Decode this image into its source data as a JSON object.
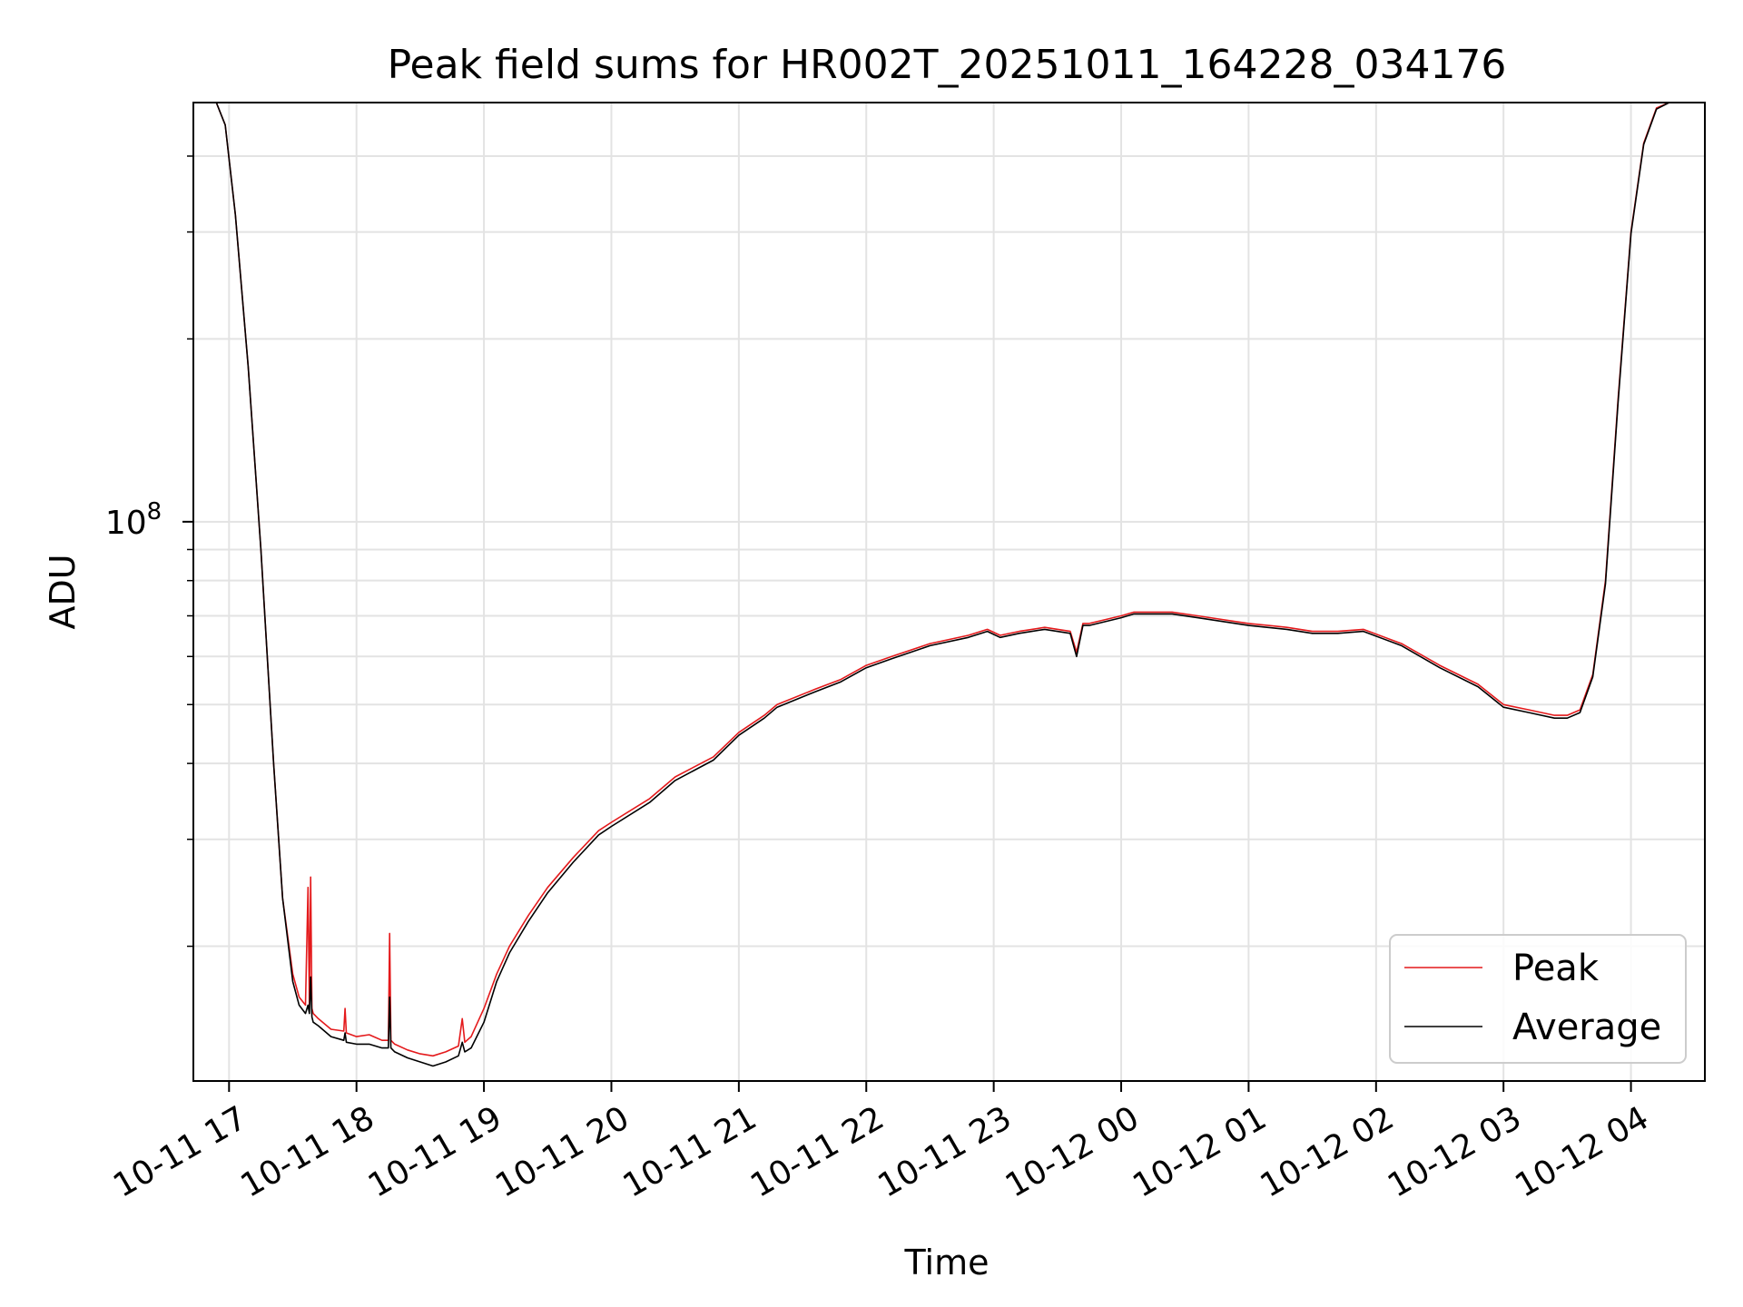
{
  "chart_data": {
    "type": "line",
    "title": "Peak field sums for HR002T_20251011_164228_034176",
    "xlabel": "Time",
    "ylabel": "ADU",
    "yscale": "log",
    "ylim": [
      12000000,
      490000000
    ],
    "xlim": [
      16.72,
      28.58
    ],
    "grid": true,
    "legend_position": "lower-right",
    "y_major_tick": {
      "value": 100000000,
      "base": "10",
      "exp": "8"
    },
    "y_minor_ticks": [
      20000000,
      30000000,
      40000000,
      50000000,
      60000000,
      70000000,
      80000000,
      90000000,
      200000000,
      300000000,
      400000000
    ],
    "x_ticks": [
      {
        "value": 17,
        "label": "10-11 17"
      },
      {
        "value": 18,
        "label": "10-11 18"
      },
      {
        "value": 19,
        "label": "10-11 19"
      },
      {
        "value": 20,
        "label": "10-11 20"
      },
      {
        "value": 21,
        "label": "10-11 21"
      },
      {
        "value": 22,
        "label": "10-11 22"
      },
      {
        "value": 23,
        "label": "10-11 23"
      },
      {
        "value": 24,
        "label": "10-12 00"
      },
      {
        "value": 25,
        "label": "10-12 01"
      },
      {
        "value": 26,
        "label": "10-12 02"
      },
      {
        "value": 27,
        "label": "10-12 03"
      },
      {
        "value": 28,
        "label": "10-12 04"
      }
    ],
    "series": [
      {
        "name": "Peak",
        "color": "#e41a1c",
        "x": [
          16.72,
          16.9,
          16.97,
          17.05,
          17.15,
          17.25,
          17.35,
          17.42,
          17.5,
          17.55,
          17.6,
          17.62,
          17.63,
          17.64,
          17.65,
          17.66,
          17.7,
          17.8,
          17.9,
          17.91,
          17.92,
          18.0,
          18.1,
          18.2,
          18.25,
          18.26,
          18.27,
          18.3,
          18.4,
          18.5,
          18.6,
          18.7,
          18.8,
          18.83,
          18.85,
          18.9,
          19.0,
          19.1,
          19.2,
          19.35,
          19.5,
          19.7,
          19.9,
          20.0,
          20.3,
          20.5,
          20.8,
          21.0,
          21.2,
          21.3,
          21.6,
          21.8,
          22.0,
          22.2,
          22.5,
          22.8,
          22.95,
          23.05,
          23.2,
          23.4,
          23.6,
          23.65,
          23.7,
          23.75,
          24.0,
          24.1,
          24.4,
          24.6,
          25.0,
          25.3,
          25.5,
          25.7,
          25.9,
          26.2,
          26.5,
          26.8,
          27.0,
          27.2,
          27.4,
          27.5,
          27.6,
          27.7,
          27.8,
          27.9,
          28.0,
          28.1,
          28.2,
          28.3,
          28.4,
          28.5,
          28.58
        ],
        "values": [
          490000000,
          490000000,
          450000000,
          320000000,
          180000000,
          90000000,
          40000000,
          24000000,
          18000000,
          16500000,
          16000000,
          25000000,
          16000000,
          26000000,
          15800000,
          15500000,
          15200000,
          14600000,
          14500000,
          15800000,
          14400000,
          14200000,
          14300000,
          14000000,
          14000000,
          21000000,
          14000000,
          13800000,
          13500000,
          13300000,
          13200000,
          13400000,
          13700000,
          15200000,
          13900000,
          14200000,
          15800000,
          18000000,
          20000000,
          22500000,
          25000000,
          28000000,
          31000000,
          32000000,
          35000000,
          38000000,
          41000000,
          45000000,
          48000000,
          50000000,
          53000000,
          55000000,
          58000000,
          60000000,
          63000000,
          65000000,
          66500000,
          65000000,
          66000000,
          67000000,
          66000000,
          61000000,
          68000000,
          68000000,
          70000000,
          71000000,
          71000000,
          70000000,
          68000000,
          67000000,
          66000000,
          66000000,
          66500000,
          63000000,
          58000000,
          54000000,
          50000000,
          49000000,
          48000000,
          48000000,
          49000000,
          56000000,
          80000000,
          160000000,
          300000000,
          420000000,
          480000000,
          490000000,
          490000000,
          490000000,
          490000000
        ]
      },
      {
        "name": "Average",
        "color": "#000000",
        "x": [
          16.72,
          16.9,
          16.97,
          17.05,
          17.15,
          17.25,
          17.35,
          17.42,
          17.5,
          17.55,
          17.6,
          17.62,
          17.63,
          17.64,
          17.65,
          17.66,
          17.7,
          17.8,
          17.9,
          17.91,
          17.92,
          18.0,
          18.1,
          18.2,
          18.25,
          18.26,
          18.27,
          18.3,
          18.4,
          18.5,
          18.6,
          18.7,
          18.8,
          18.83,
          18.85,
          18.9,
          19.0,
          19.1,
          19.2,
          19.35,
          19.5,
          19.7,
          19.9,
          20.0,
          20.3,
          20.5,
          20.8,
          21.0,
          21.2,
          21.3,
          21.6,
          21.8,
          22.0,
          22.2,
          22.5,
          22.8,
          22.95,
          23.05,
          23.2,
          23.4,
          23.6,
          23.65,
          23.7,
          23.75,
          24.0,
          24.1,
          24.4,
          24.6,
          25.0,
          25.3,
          25.5,
          25.7,
          25.9,
          26.2,
          26.5,
          26.8,
          27.0,
          27.2,
          27.4,
          27.5,
          27.6,
          27.7,
          27.8,
          27.9,
          28.0,
          28.1,
          28.2,
          28.3,
          28.4,
          28.5,
          28.58
        ],
        "values": [
          490000000,
          490000000,
          450000000,
          320000000,
          180000000,
          90000000,
          40000000,
          24000000,
          17500000,
          16000000,
          15500000,
          16000000,
          15500000,
          17800000,
          15300000,
          15000000,
          14800000,
          14200000,
          14000000,
          14400000,
          13900000,
          13800000,
          13800000,
          13600000,
          13600000,
          16500000,
          13600000,
          13400000,
          13100000,
          12900000,
          12700000,
          12900000,
          13200000,
          13900000,
          13400000,
          13600000,
          15000000,
          17500000,
          19500000,
          22000000,
          24500000,
          27500000,
          30500000,
          31500000,
          34500000,
          37500000,
          40500000,
          44500000,
          47500000,
          49500000,
          52500000,
          54500000,
          57500000,
          59500000,
          62500000,
          64500000,
          66000000,
          64500000,
          65500000,
          66500000,
          65500000,
          60000000,
          67500000,
          67500000,
          69500000,
          70500000,
          70500000,
          69500000,
          67500000,
          66500000,
          65500000,
          65500000,
          66000000,
          62500000,
          57500000,
          53500000,
          49500000,
          48500000,
          47500000,
          47500000,
          48500000,
          55500000,
          79000000,
          158000000,
          298000000,
          418000000,
          478000000,
          490000000,
          490000000,
          490000000,
          490000000
        ]
      }
    ]
  }
}
